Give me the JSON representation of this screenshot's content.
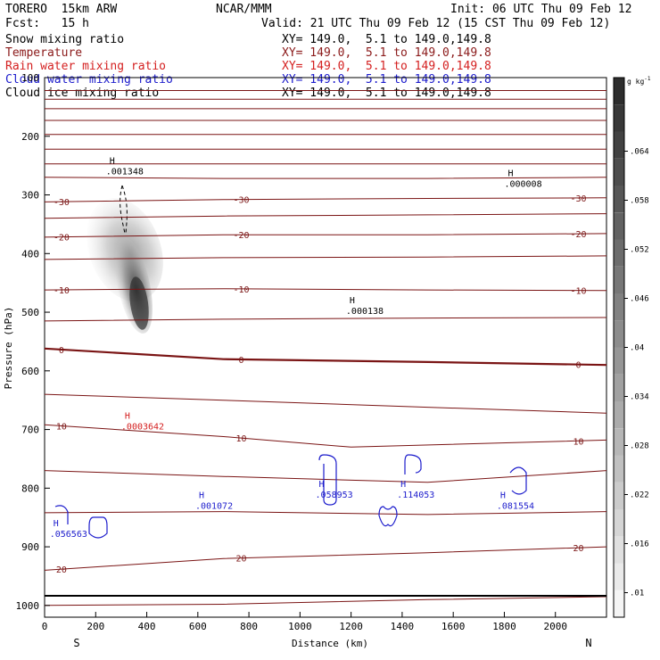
{
  "header": {
    "model": "TORERO  15km ARW",
    "org": "NCAR/MMM",
    "init": "Init: 06 UTC Thu 09 Feb 12",
    "fcst": "Fcst:   15 h",
    "valid": "Valid: 21 UTC Thu 09 Feb 12 (15 CST Thu 09 Feb 12)"
  },
  "fields": [
    {
      "name": "Snow mixing ratio",
      "xy": "XY= 149.0,  5.1 to 149.0,149.8",
      "color": "#000000"
    },
    {
      "name": "Temperature",
      "xy": "XY= 149.0,  5.1 to 149.0,149.8",
      "color": "#8b1a1a"
    },
    {
      "name": "Rain water mixing ratio",
      "xy": "XY= 149.0,  5.1 to 149.0,149.8",
      "color": "#d42020"
    },
    {
      "name": "Cloud water mixing ratio",
      "xy": "XY= 149.0,  5.1 to 149.0,149.8",
      "color": "#1c1ccc"
    },
    {
      "name": "Cloud ice mixing ratio",
      "xy": "XY= 149.0,  5.1 to 149.0,149.8",
      "color": "#000000"
    }
  ],
  "colorbar": {
    "unit": "g kg",
    "unit_exp": "-1",
    "ticks": [
      ".064",
      ".058",
      ".052",
      ".046",
      ".04",
      ".034",
      ".028",
      ".022",
      ".016",
      ".01"
    ],
    "tick_values": [
      0.064,
      0.058,
      0.052,
      0.046,
      0.04,
      0.034,
      0.028,
      0.022,
      0.016,
      0.01
    ]
  },
  "chart_data": {
    "type": "contour",
    "xlabel": "Distance (km)",
    "ylabel": "Pressure (hPa)",
    "xlim": [
      0,
      2200
    ],
    "ylim": [
      1020,
      100
    ],
    "x_ticks": [
      0,
      200,
      400,
      600,
      800,
      1000,
      1200,
      1400,
      1600,
      1800,
      2000
    ],
    "x_tick_labels": [
      "0",
      "200",
      "400",
      "600",
      "800",
      "1000",
      "1200",
      "1400",
      "1600",
      "1800",
      "2000"
    ],
    "y_ticks": [
      100,
      200,
      300,
      400,
      500,
      600,
      700,
      800,
      900,
      1000
    ],
    "y_tick_labels": [
      "100",
      "200",
      "300",
      "400",
      "500",
      "600",
      "700",
      "800",
      "900",
      "1000"
    ],
    "end_labels": {
      "left": "S",
      "right": "N"
    },
    "temperature_isotherms": [
      {
        "p": [
          122,
          122,
          122,
          122
        ],
        "d": [
          0,
          800,
          1600,
          2200
        ],
        "label": ""
      },
      {
        "p": [
          137,
          137,
          137,
          137
        ],
        "d": [
          0,
          800,
          1600,
          2200
        ],
        "label": ""
      },
      {
        "p": [
          153,
          153,
          153,
          153
        ],
        "d": [
          0,
          800,
          1600,
          2200
        ],
        "label": ""
      },
      {
        "p": [
          173,
          173,
          173,
          173
        ],
        "d": [
          0,
          800,
          1600,
          2200
        ],
        "label": ""
      },
      {
        "p": [
          197,
          197,
          197,
          197
        ],
        "d": [
          0,
          800,
          1600,
          2200
        ],
        "label": ""
      },
      {
        "p": [
          222,
          222,
          222,
          222
        ],
        "d": [
          0,
          800,
          1600,
          2200
        ],
        "label": ""
      },
      {
        "p": [
          247,
          247,
          247,
          247
        ],
        "d": [
          0,
          800,
          1600,
          2200
        ],
        "label": ""
      },
      {
        "p": [
          270,
          272,
          272,
          270
        ],
        "d": [
          0,
          700,
          1500,
          2200
        ],
        "label": ""
      },
      {
        "p": [
          312,
          308,
          306,
          305
        ],
        "d": [
          0,
          700,
          1500,
          2200
        ],
        "label": "-30"
      },
      {
        "p": [
          340,
          336,
          334,
          332
        ],
        "d": [
          0,
          700,
          1500,
          2200
        ],
        "label": ""
      },
      {
        "p": [
          372,
          368,
          368,
          366
        ],
        "d": [
          0,
          700,
          1500,
          2200
        ],
        "label": "-20"
      },
      {
        "p": [
          410,
          407,
          406,
          404
        ],
        "d": [
          0,
          700,
          1500,
          2200
        ],
        "label": ""
      },
      {
        "p": [
          462,
          460,
          462,
          463
        ],
        "d": [
          0,
          700,
          1500,
          2200
        ],
        "label": "-10"
      },
      {
        "p": [
          515,
          512,
          510,
          509
        ],
        "d": [
          0,
          700,
          1500,
          2200
        ],
        "label": ""
      },
      {
        "p": [
          562,
          580,
          585,
          590
        ],
        "d": [
          0,
          700,
          1500,
          2200
        ],
        "label": "0"
      },
      {
        "p": [
          640,
          650,
          662,
          672
        ],
        "d": [
          0,
          700,
          1500,
          2200
        ],
        "label": ""
      },
      {
        "p": [
          692,
          712,
          730,
          718
        ],
        "d": [
          0,
          700,
          1200,
          2200
        ],
        "label": "10"
      },
      {
        "p": [
          770,
          780,
          790,
          770
        ],
        "d": [
          0,
          700,
          1500,
          2200
        ],
        "label": ""
      },
      {
        "p": [
          842,
          840,
          845,
          840
        ],
        "d": [
          0,
          700,
          1500,
          2200
        ],
        "label": ""
      },
      {
        "p": [
          940,
          920,
          910,
          900
        ],
        "d": [
          0,
          700,
          1500,
          2200
        ],
        "label": "20"
      },
      {
        "p": [
          1000,
          998,
          990,
          985
        ],
        "d": [
          0,
          700,
          1500,
          2200
        ],
        "label": ""
      }
    ],
    "maxima_labels": [
      {
        "field": "cloud_ice",
        "value": ".001348",
        "d": 240,
        "p": 262
      },
      {
        "field": "cloud_ice",
        "value": ".000008",
        "d": 1800,
        "p": 283
      },
      {
        "field": "cloud_ice",
        "value": ".000138",
        "d": 1180,
        "p": 500
      },
      {
        "field": "rain",
        "value": ".0003642",
        "d": 300,
        "p": 697
      },
      {
        "field": "cloud_water",
        "value": ".001072",
        "d": 590,
        "p": 832
      },
      {
        "field": "cloud_water",
        "value": ".058953",
        "d": 1060,
        "p": 813
      },
      {
        "field": "cloud_water",
        "value": ".114053",
        "d": 1380,
        "p": 813
      },
      {
        "field": "cloud_water",
        "value": ".081554",
        "d": 1770,
        "p": 832
      },
      {
        "field": "cloud_water",
        "value": ".056563",
        "d": 20,
        "p": 880
      }
    ]
  }
}
